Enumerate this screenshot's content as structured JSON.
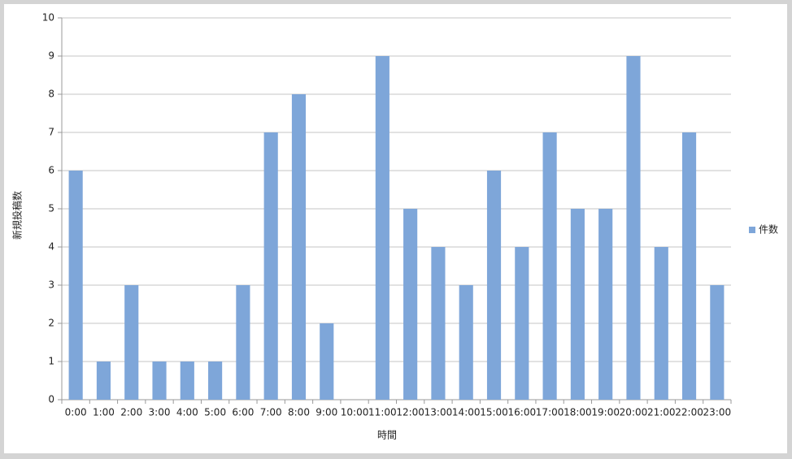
{
  "chart_data": {
    "type": "bar",
    "x_label": "時間",
    "y_label": "新規投稿数",
    "categories": [
      "0:00",
      "1:00",
      "2:00",
      "3:00",
      "4:00",
      "5:00",
      "6:00",
      "7:00",
      "8:00",
      "9:00",
      "10:00",
      "11:00",
      "12:00",
      "13:00",
      "14:00",
      "15:00",
      "16:00",
      "17:00",
      "18:00",
      "19:00",
      "20:00",
      "21:00",
      "22:00",
      "23:00"
    ],
    "series": [
      {
        "name": "件数",
        "color": "#7ea6d9",
        "values": [
          6,
          1,
          3,
          1,
          1,
          1,
          3,
          7,
          8,
          2,
          0,
          9,
          5,
          4,
          3,
          6,
          4,
          7,
          5,
          5,
          9,
          4,
          7,
          3
        ]
      }
    ],
    "ylim": [
      0,
      10
    ],
    "yticks": [
      0,
      1,
      2,
      3,
      4,
      5,
      6,
      7,
      8,
      9,
      10
    ],
    "grid": true,
    "legend": "right"
  }
}
